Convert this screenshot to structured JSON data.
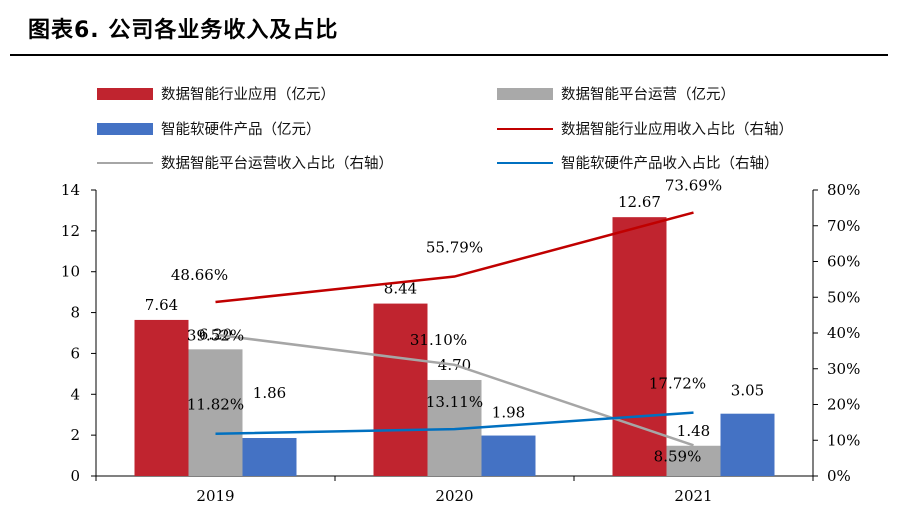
{
  "title": "图表6.   公司各业务收入及占比",
  "colors": {
    "industry": "#c0242f",
    "platform": "#a9a9a9",
    "hardware": "#4472c4",
    "industry_line": "#c00000",
    "platform_line": "#a6a6a6",
    "hardware_line": "#0070c0"
  },
  "legend": {
    "industry": "数据智能行业应用（亿元）",
    "platform": "数据智能平台运营（亿元）",
    "hardware": "智能软硬件产品（亿元）",
    "industry_ratio": "数据智能行业应用收入占比（右轴）",
    "platform_ratio": "数据智能平台运营收入占比（右轴）",
    "hardware_ratio": "智能软硬件产品收入占比（右轴）"
  },
  "chart_data": {
    "type": "bar",
    "categories": [
      "2019",
      "2020",
      "2021"
    ],
    "series": [
      {
        "name": "数据智能行业应用（亿元）",
        "key": "industry",
        "values": [
          7.64,
          8.44,
          12.67
        ],
        "labels": [
          "7.64",
          "8.44",
          "12.67"
        ]
      },
      {
        "name": "数据智能平台运营（亿元）",
        "key": "platform",
        "values": [
          6.2,
          4.7,
          1.48
        ],
        "labels": [
          "6.20",
          "4.70",
          "1.48"
        ]
      },
      {
        "name": "智能软硬件产品（亿元）",
        "key": "hardware",
        "values": [
          1.86,
          1.98,
          3.05
        ],
        "labels": [
          "1.86",
          "1.98",
          "3.05"
        ]
      }
    ],
    "line_series": [
      {
        "name": "数据智能行业应用收入占比（右轴）",
        "key": "industry_ratio",
        "values": [
          48.66,
          55.79,
          73.69
        ],
        "labels": [
          "48.66%",
          "55.79%",
          "73.69%"
        ]
      },
      {
        "name": "数据智能平台运营收入占比（右轴）",
        "key": "platform_ratio",
        "values": [
          39.52,
          31.1,
          8.59
        ],
        "labels": [
          "39.52%",
          "31.10%",
          "8.59%"
        ]
      },
      {
        "name": "智能软硬件产品收入占比（右轴）",
        "key": "hardware_ratio",
        "values": [
          11.82,
          13.11,
          17.72
        ],
        "labels": [
          "11.82%",
          "13.11%",
          "17.72%"
        ]
      }
    ],
    "y_left": {
      "min": 0,
      "max": 14,
      "ticks": [
        "0",
        "2",
        "4",
        "6",
        "8",
        "10",
        "12",
        "14"
      ]
    },
    "y_right": {
      "min": 0,
      "max": 80,
      "ticks": [
        "0%",
        "10%",
        "20%",
        "30%",
        "40%",
        "50%",
        "60%",
        "70%",
        "80%"
      ]
    }
  }
}
